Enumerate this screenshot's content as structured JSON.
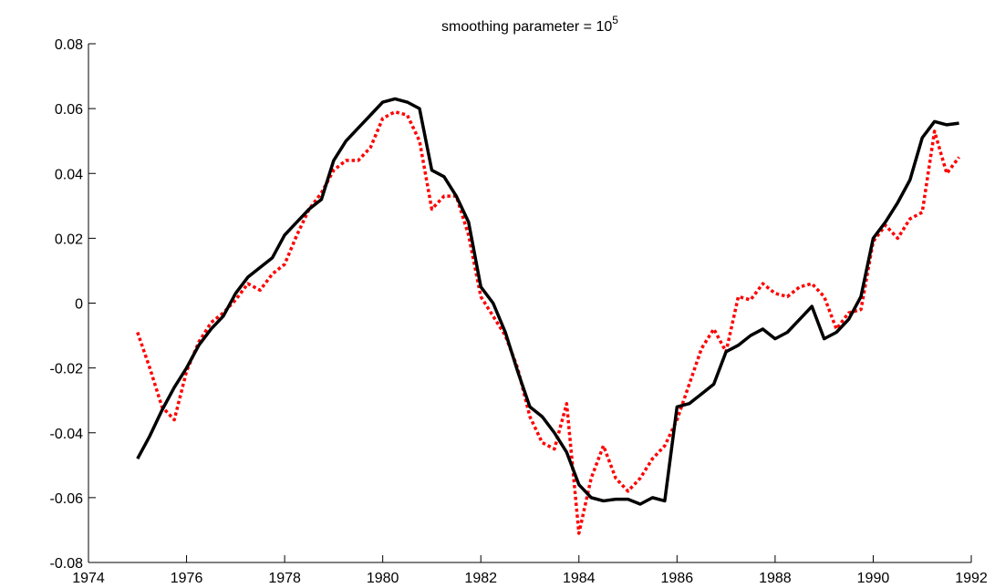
{
  "chart_data": {
    "type": "line",
    "title": "smoothing parameter = 10",
    "title_superscript": "5",
    "x": [
      1975,
      1975.25,
      1975.5,
      1975.75,
      1976,
      1976.25,
      1976.5,
      1976.75,
      1977,
      1977.25,
      1977.5,
      1977.75,
      1978,
      1978.25,
      1978.5,
      1978.75,
      1979,
      1979.25,
      1979.5,
      1979.75,
      1980,
      1980.25,
      1980.5,
      1980.75,
      1981,
      1981.25,
      1981.5,
      1981.75,
      1982,
      1982.25,
      1982.5,
      1982.75,
      1983,
      1983.25,
      1983.5,
      1983.75,
      1984,
      1984.25,
      1984.5,
      1984.75,
      1985,
      1985.25,
      1985.5,
      1985.75,
      1986,
      1986.25,
      1986.5,
      1986.75,
      1987,
      1987.25,
      1987.5,
      1987.75,
      1988,
      1988.25,
      1988.5,
      1988.75,
      1989,
      1989.25,
      1989.5,
      1989.75,
      1990,
      1990.25,
      1990.5,
      1990.75,
      1991,
      1991.25,
      1991.5,
      1991.75
    ],
    "series": [
      {
        "color": "#000000",
        "style": "solid",
        "values": [
          -0.048,
          -0.041,
          -0.033,
          -0.026,
          -0.02,
          -0.013,
          -0.008,
          -0.004,
          0.003,
          0.008,
          0.011,
          0.014,
          0.021,
          0.025,
          0.029,
          0.032,
          0.044,
          0.05,
          0.054,
          0.058,
          0.062,
          0.063,
          0.062,
          0.06,
          0.041,
          0.039,
          0.033,
          0.025,
          0.005,
          0,
          -0.009,
          -0.021,
          -0.032,
          -0.035,
          -0.04,
          -0.046,
          -0.056,
          -0.06,
          -0.061,
          -0.0605,
          -0.0605,
          -0.062,
          -0.06,
          -0.061,
          -0.032,
          -0.031,
          -0.028,
          -0.025,
          -0.015,
          -0.013,
          -0.01,
          -0.008,
          -0.011,
          -0.009,
          -0.005,
          -0.001,
          -0.011,
          -0.009,
          -0.005,
          0.002,
          0.02,
          0.025,
          0.031,
          0.038,
          0.051,
          0.056,
          0.055,
          0.0555
        ]
      },
      {
        "color": "#ff0000",
        "style": "dotted",
        "values": [
          -0.009,
          -0.02,
          -0.032,
          -0.036,
          -0.021,
          -0.012,
          -0.006,
          -0.003,
          0.001,
          0.006,
          0.004,
          0.009,
          0.012,
          0.021,
          0.029,
          0.034,
          0.041,
          0.044,
          0.044,
          0.048,
          0.057,
          0.059,
          0.058,
          0.05,
          0.029,
          0.033,
          0.033,
          0.021,
          0.002,
          -0.004,
          -0.01,
          -0.02,
          -0.035,
          -0.043,
          -0.045,
          -0.031,
          -0.071,
          -0.054,
          -0.044,
          -0.054,
          -0.058,
          -0.054,
          -0.048,
          -0.044,
          -0.036,
          -0.025,
          -0.014,
          -0.008,
          -0.015,
          0.002,
          0.001,
          0.006,
          0.003,
          0.002,
          0.005,
          0.006,
          0.002,
          -0.008,
          -0.003,
          -0.002,
          0.019,
          0.024,
          0.02,
          0.026,
          0.028,
          0.053,
          0.04,
          0.045
        ]
      }
    ],
    "xlim": [
      1974,
      1992
    ],
    "xticks": [
      1974,
      1976,
      1978,
      1980,
      1982,
      1984,
      1986,
      1988,
      1990,
      1992
    ],
    "ylim": [
      -0.08,
      0.08
    ],
    "yticks": [
      -0.08,
      -0.06,
      -0.04,
      -0.02,
      0,
      0.02,
      0.04,
      0.06,
      0.08
    ],
    "grid": false
  }
}
